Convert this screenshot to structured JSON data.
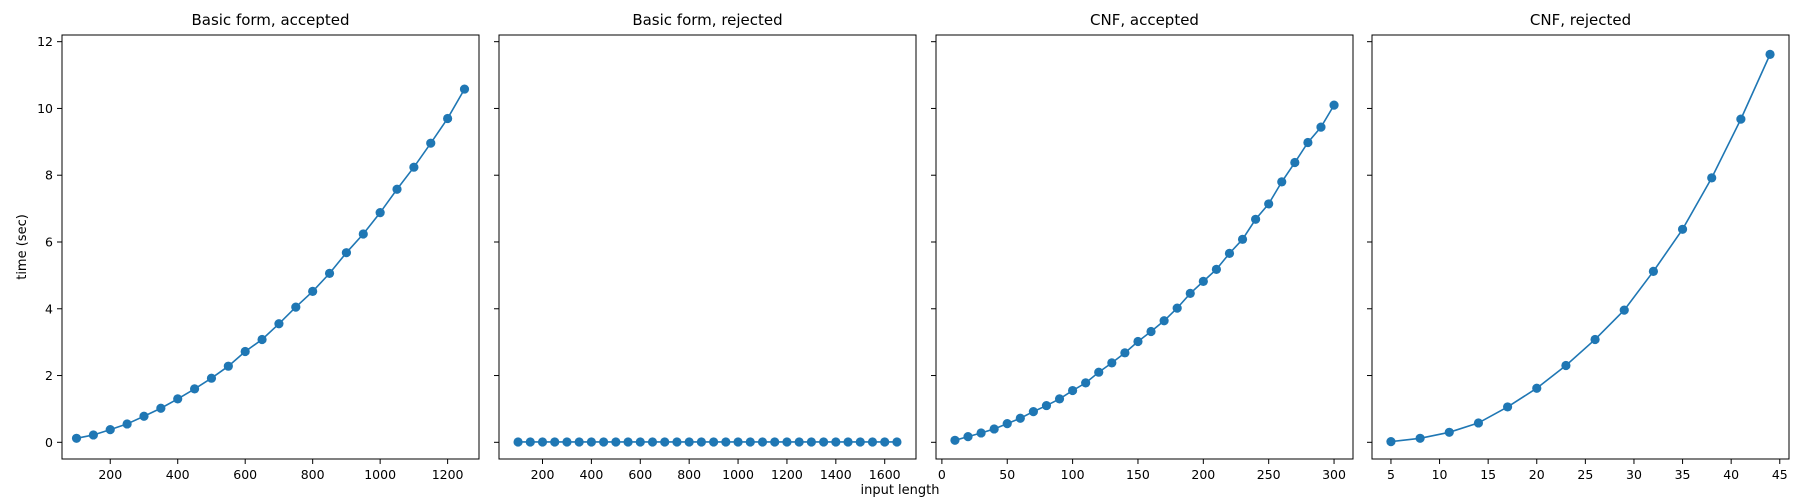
{
  "figure": {
    "shared_xlabel": "input length",
    "shared_ylabel": "time (sec)",
    "series_color": "#1f77b4"
  },
  "chart_data": [
    {
      "type": "line",
      "title": "Basic form, accepted",
      "xlabel": "",
      "ylabel": "time (sec)",
      "xlim": [
        57,
        1293
      ],
      "ylim": [
        -0.5,
        12.2
      ],
      "xticks": [
        200,
        400,
        600,
        800,
        1000,
        1200
      ],
      "yticks": [
        0,
        2,
        4,
        6,
        8,
        10,
        12
      ],
      "markers": true,
      "x": [
        100,
        150,
        200,
        250,
        300,
        350,
        400,
        450,
        500,
        550,
        600,
        650,
        700,
        750,
        800,
        850,
        900,
        950,
        1000,
        1050,
        1100,
        1150,
        1200,
        1250
      ],
      "y": [
        0.12,
        0.22,
        0.38,
        0.55,
        0.78,
        1.02,
        1.3,
        1.6,
        1.92,
        2.28,
        2.72,
        3.08,
        3.55,
        4.05,
        4.52,
        5.06,
        5.68,
        6.24,
        6.88,
        7.58,
        8.24,
        8.96,
        9.7,
        10.58
      ]
    },
    {
      "type": "line",
      "title": "Basic form, rejected",
      "xlabel": "",
      "ylabel": "",
      "xlim": [
        22,
        1728
      ],
      "ylim": [
        -0.5,
        12.2
      ],
      "xticks": [
        200,
        400,
        600,
        800,
        1000,
        1200,
        1400,
        1600
      ],
      "yticks": [
        0,
        2,
        4,
        6,
        8,
        10,
        12
      ],
      "markers": true,
      "x": [
        100,
        150,
        200,
        250,
        300,
        350,
        400,
        450,
        500,
        550,
        600,
        650,
        700,
        750,
        800,
        850,
        900,
        950,
        1000,
        1050,
        1100,
        1150,
        1200,
        1250,
        1300,
        1350,
        1400,
        1450,
        1500,
        1550,
        1600,
        1650
      ],
      "y": [
        0.01,
        0.01,
        0.01,
        0.01,
        0.01,
        0.01,
        0.01,
        0.01,
        0.01,
        0.01,
        0.01,
        0.01,
        0.01,
        0.01,
        0.01,
        0.01,
        0.01,
        0.01,
        0.01,
        0.01,
        0.01,
        0.01,
        0.01,
        0.01,
        0.01,
        0.01,
        0.01,
        0.01,
        0.01,
        0.01,
        0.01,
        0.01
      ]
    },
    {
      "type": "line",
      "title": "CNF, accepted",
      "xlabel": "",
      "ylabel": "",
      "xlim": [
        -4.5,
        314.5
      ],
      "ylim": [
        -0.5,
        12.2
      ],
      "xticks": [
        0,
        50,
        100,
        150,
        200,
        250,
        300
      ],
      "yticks": [
        0,
        2,
        4,
        6,
        8,
        10,
        12
      ],
      "markers": true,
      "x": [
        10,
        20,
        30,
        40,
        50,
        60,
        70,
        80,
        90,
        100,
        110,
        120,
        130,
        140,
        150,
        160,
        170,
        180,
        190,
        200,
        210,
        220,
        230,
        240,
        250,
        260,
        270,
        280,
        290,
        300
      ],
      "y": [
        0.06,
        0.17,
        0.28,
        0.4,
        0.56,
        0.72,
        0.92,
        1.1,
        1.3,
        1.55,
        1.78,
        2.1,
        2.38,
        2.68,
        3.02,
        3.32,
        3.64,
        4.02,
        4.46,
        4.82,
        5.18,
        5.66,
        6.08,
        6.68,
        7.14,
        7.8,
        8.38,
        8.98,
        9.44,
        10.1
      ]
    },
    {
      "type": "line",
      "title": "CNF, rejected",
      "xlabel": "",
      "ylabel": "",
      "xlim": [
        3.05,
        45.95
      ],
      "ylim": [
        -0.5,
        12.2
      ],
      "xticks": [
        5,
        10,
        15,
        20,
        25,
        30,
        35,
        40,
        45
      ],
      "yticks": [
        0,
        2,
        4,
        6,
        8,
        10,
        12
      ],
      "markers": true,
      "x": [
        5,
        8,
        11,
        14,
        17,
        20,
        23,
        26,
        29,
        32,
        35,
        38,
        41,
        44
      ],
      "y": [
        0.02,
        0.12,
        0.3,
        0.58,
        1.06,
        1.62,
        2.3,
        3.08,
        3.96,
        5.12,
        6.38,
        7.92,
        9.68,
        11.62
      ]
    }
  ]
}
